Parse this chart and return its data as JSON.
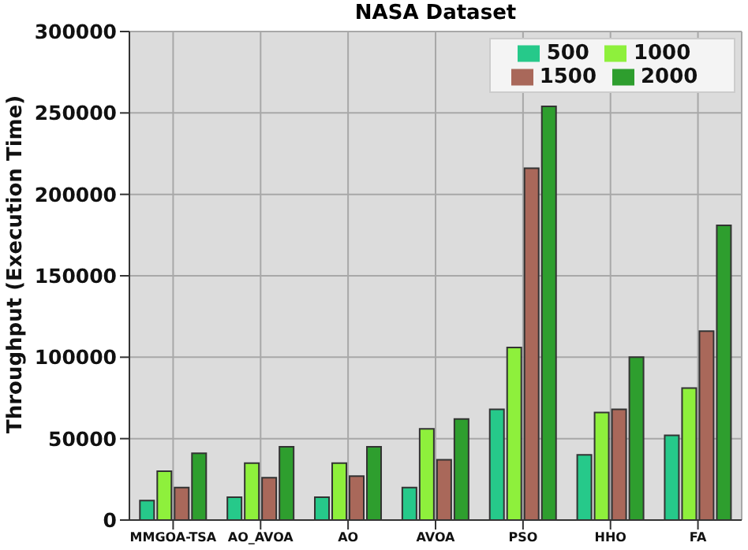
{
  "chart_data": {
    "type": "bar",
    "title": "NASA Dataset",
    "ylabel": "Throughput (Execution Time)",
    "categories": [
      "MMGOA-TSA",
      "AO_AVOA",
      "AO",
      "AVOA",
      "PSO",
      "HHO",
      "FA"
    ],
    "series": [
      {
        "name": "500",
        "color": "#26c98a",
        "values": [
          12000,
          14000,
          14000,
          20000,
          68000,
          40000,
          52000
        ]
      },
      {
        "name": "1000",
        "color": "#8ef03c",
        "values": [
          30000,
          35000,
          35000,
          56000,
          106000,
          66000,
          81000
        ]
      },
      {
        "name": "1500",
        "color": "#a9685a",
        "values": [
          20000,
          26000,
          27000,
          37000,
          216000,
          68000,
          116000
        ]
      },
      {
        "name": "2000",
        "color": "#2e9e2e",
        "values": [
          41000,
          45000,
          45000,
          62000,
          254000,
          100000,
          181000
        ]
      }
    ],
    "ylim": [
      0,
      300000
    ],
    "yticks": [
      0,
      50000,
      100000,
      150000,
      200000,
      250000,
      300000
    ],
    "grid": true,
    "legend": "top right"
  }
}
